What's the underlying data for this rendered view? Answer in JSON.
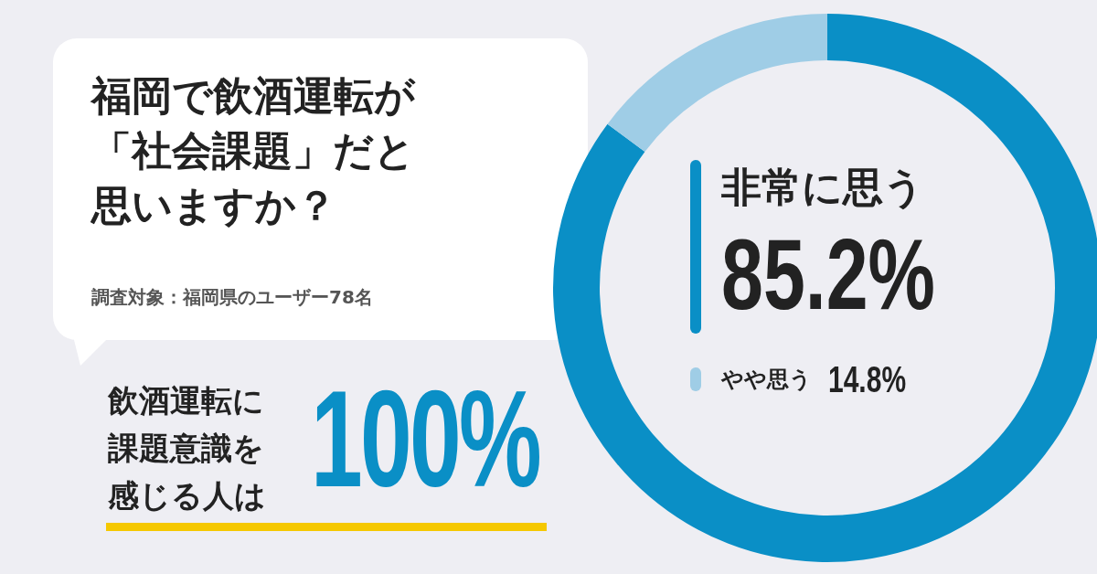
{
  "chart_data": {
    "type": "donut",
    "title": "福岡で飲酒運転が「社会課題」だと思いますか？",
    "categories": [
      "非常に思う",
      "やや思う"
    ],
    "values": [
      85.2,
      14.8
    ],
    "colors": [
      "#0a8fc6",
      "#9fcde6"
    ],
    "value_labels": [
      "85.2%",
      "14.8%"
    ],
    "legend": "center",
    "annotations": [
      "調査対象：福岡県のユーザー78名",
      "飲酒運転に課題意識を感じる人は",
      "100%"
    ]
  }
}
